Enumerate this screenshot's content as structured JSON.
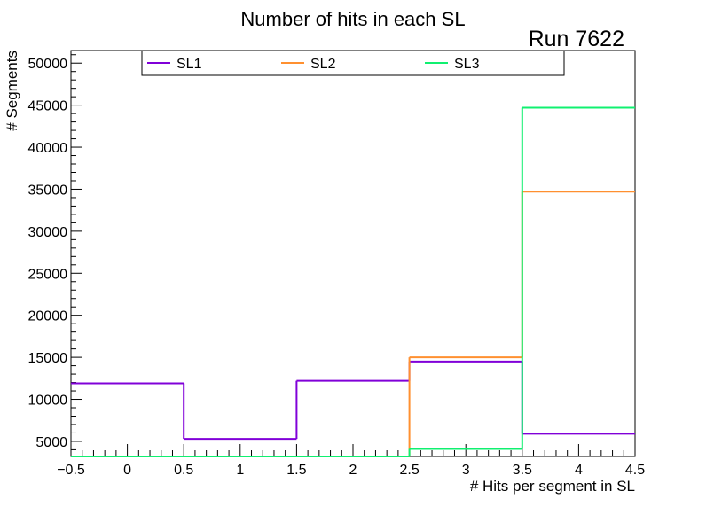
{
  "chart_data": {
    "type": "histogram",
    "title": "Number of hits in each SL",
    "run_label": "Run 7622",
    "xlabel": "# Hits per segment in SL",
    "ylabel": "# Segments",
    "xlim": [
      -0.5,
      4.5
    ],
    "ylim": [
      3200,
      51500
    ],
    "bin_edges": [
      -0.5,
      0.5,
      1.5,
      2.5,
      3.5,
      4.5
    ],
    "x_ticks": [
      {
        "value": -0.5,
        "label": "−0.5"
      },
      {
        "value": 0,
        "label": "0"
      },
      {
        "value": 0.5,
        "label": "0.5"
      },
      {
        "value": 1,
        "label": "1"
      },
      {
        "value": 1.5,
        "label": "1.5"
      },
      {
        "value": 2,
        "label": "2"
      },
      {
        "value": 2.5,
        "label": "2.5"
      },
      {
        "value": 3,
        "label": "3"
      },
      {
        "value": 3.5,
        "label": "3.5"
      },
      {
        "value": 4,
        "label": "4"
      },
      {
        "value": 4.5,
        "label": "4.5"
      }
    ],
    "y_ticks": [
      {
        "value": 5000,
        "label": "5000"
      },
      {
        "value": 10000,
        "label": "10000"
      },
      {
        "value": 15000,
        "label": "15000"
      },
      {
        "value": 20000,
        "label": "20000"
      },
      {
        "value": 25000,
        "label": "25000"
      },
      {
        "value": 30000,
        "label": "30000"
      },
      {
        "value": 35000,
        "label": "35000"
      },
      {
        "value": 40000,
        "label": "40000"
      },
      {
        "value": 45000,
        "label": "45000"
      },
      {
        "value": 50000,
        "label": "50000"
      }
    ],
    "series": [
      {
        "name": "SL1",
        "color": "#8000d8",
        "values": [
          11900,
          5300,
          12200,
          14500,
          5900
        ]
      },
      {
        "name": "SL2",
        "color": "#ff9030",
        "values": [
          3200,
          3200,
          3200,
          15000,
          34700
        ]
      },
      {
        "name": "SL3",
        "color": "#10f070",
        "values": [
          3200,
          3200,
          3200,
          4100,
          44700
        ]
      }
    ]
  }
}
